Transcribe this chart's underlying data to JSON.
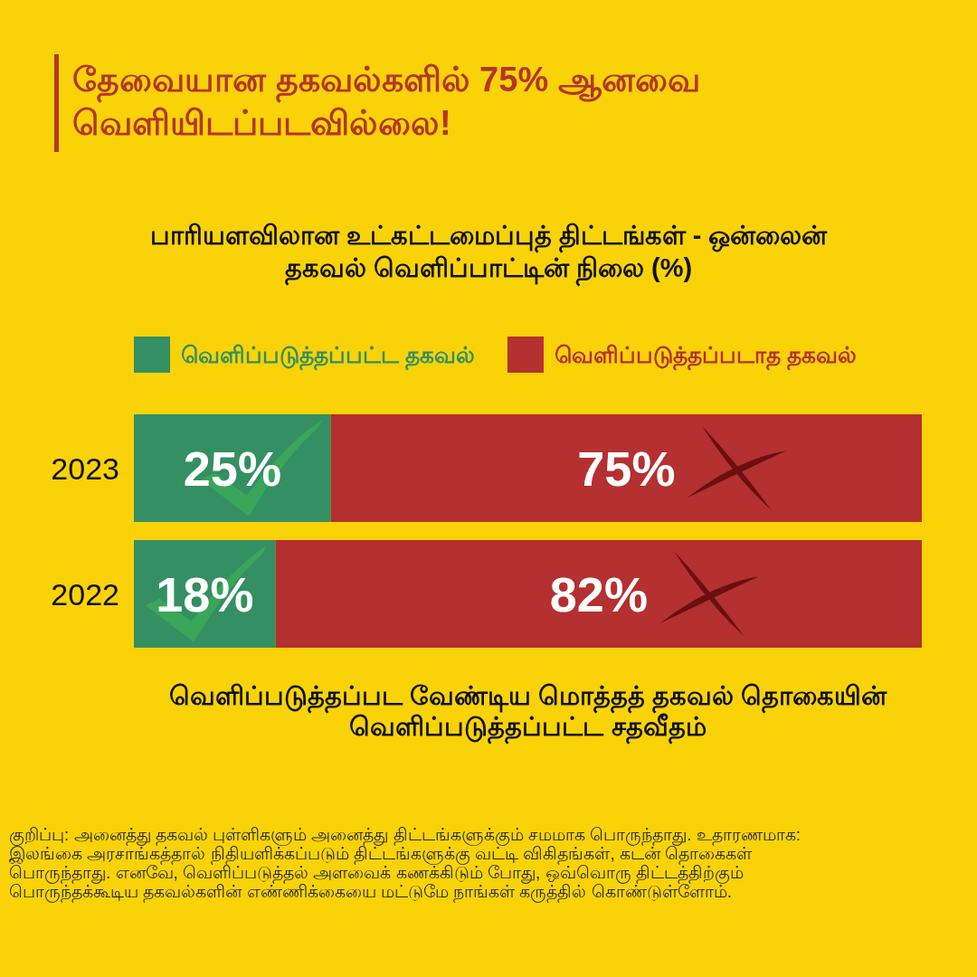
{
  "chart_data": {
    "type": "bar",
    "orientation": "horizontal",
    "stacked": true,
    "title": "தேவையான தகவல்களில் 75% ஆனவை வெளியிடப்படவில்லை!",
    "subtitle": "பாரியளவிலான உட்கட்டமைப்புத் திட்டங்கள் - ஒன்லைன் தகவல் வெளிப்பாட்டின் நிலை (%)",
    "xlabel": "வெளிப்படுத்தப்பட வேண்டிய மொத்தத் தகவல் தொகையின் வெளிப்படுத்தப்பட்ட சதவீதம்",
    "categories": [
      "2023",
      "2022"
    ],
    "series": [
      {
        "name": "வெளிப்படுத்தப்பட்ட தகவல்",
        "color": "#348f62",
        "values": [
          25,
          18
        ],
        "value_labels": [
          "25%",
          "18%"
        ]
      },
      {
        "name": "வெளிப்படுத்தப்படாத தகவல்",
        "color": "#b53030",
        "values": [
          75,
          82
        ],
        "value_labels": [
          "75%",
          "82%"
        ]
      }
    ],
    "xlim": [
      0,
      100
    ],
    "legend": "top",
    "tick_labels": "y",
    "annotations": [
      "குறிப்பு: அனைத்து தகவல் புள்ளிகளும் அனைத்து திட்டங்களுக்கும் சமமாக பொருந்தாது. உதாரணமாக: இலங்கை அரசாங்கத்தால் நிதியளிக்கப்படும் திட்டங்களுக்கு வட்டி விகிதங்கள், கடன் தொகைகள் பொருந்தாது. எனவே, வெளிப்படுத்தல் அளவைக் கணக்கிடும் போது, ஒவ்வொரு திட்டத்திற்கும் பொருந்தக்கூடிய தகவல்களின் எண்ணிக்கையை மட்டுமே நாங்கள் கருத்தில் கொண்டுள்ளோம்."
    ]
  }
}
